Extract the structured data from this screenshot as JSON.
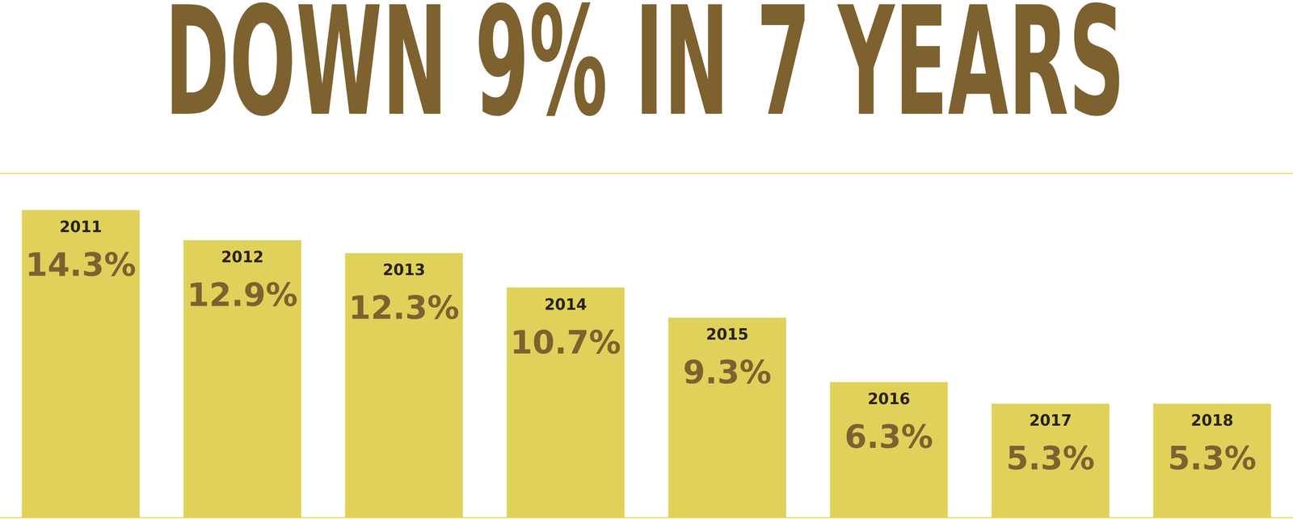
{
  "chart_data": {
    "type": "bar",
    "title": "DOWN 9% IN 7 YEARS",
    "categories": [
      "2011",
      "2012",
      "2013",
      "2014",
      "2015",
      "2016",
      "2017",
      "2018"
    ],
    "values": [
      14.3,
      12.9,
      12.3,
      10.7,
      9.3,
      6.3,
      5.3,
      5.3
    ],
    "value_labels": [
      "14.3%",
      "12.9%",
      "12.3%",
      "10.7%",
      "9.3%",
      "6.3%",
      "5.3%",
      "5.3%"
    ],
    "color": "#e0d15a",
    "ylim": [
      0,
      16
    ],
    "yticks": [
      0,
      4,
      8,
      12,
      16
    ],
    "grid": true,
    "data_labels": true,
    "tick_labels": false
  }
}
